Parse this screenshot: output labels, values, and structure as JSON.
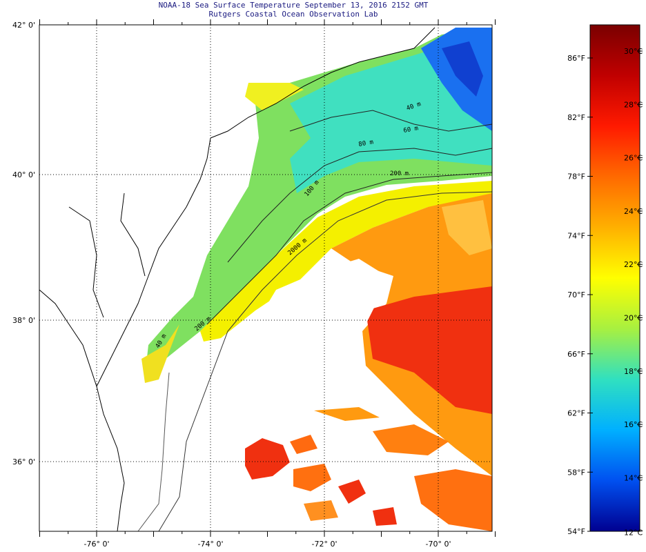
{
  "header": {
    "title": "NOAA-18 Sea Surface Temperature September 13, 2016 2152 GMT",
    "subtitle": "Rutgers Coastal Ocean Observation Lab"
  },
  "map": {
    "lat_labels": [
      {
        "value": 42,
        "label": "42° 0'"
      },
      {
        "value": 40,
        "label": "40° 0'"
      },
      {
        "value": 38,
        "label": "38° 0'"
      },
      {
        "value": 36,
        "label": "36° 0'"
      }
    ],
    "lon_labels": [
      {
        "value": -76,
        "label": "-76° 0'"
      },
      {
        "value": -74,
        "label": "-74° 0'"
      },
      {
        "value": -72,
        "label": "-72° 0'"
      },
      {
        "value": -70,
        "label": "-70° 0'"
      }
    ],
    "contour_labels": [
      "40 m",
      "60 m",
      "80 m",
      "100 m",
      "200 m",
      "2000 m",
      "200 m",
      "40 m"
    ]
  },
  "colorbar": {
    "fahrenheit": [
      "86°F",
      "82°F",
      "78°F",
      "74°F",
      "70°F",
      "66°F",
      "62°F",
      "58°F",
      "54°F"
    ],
    "celsius": [
      "30°C",
      "28°C",
      "26°C",
      "24°C",
      "22°C",
      "20°C",
      "18°C",
      "16°C",
      "14°C",
      "12°C"
    ],
    "colors": [
      "#7a0000",
      "#c00000",
      "#ff1a00",
      "#ff6a00",
      "#ffb000",
      "#ffff00",
      "#a8f040",
      "#30e0c0",
      "#00b0ff",
      "#0050f0",
      "#000090"
    ]
  }
}
